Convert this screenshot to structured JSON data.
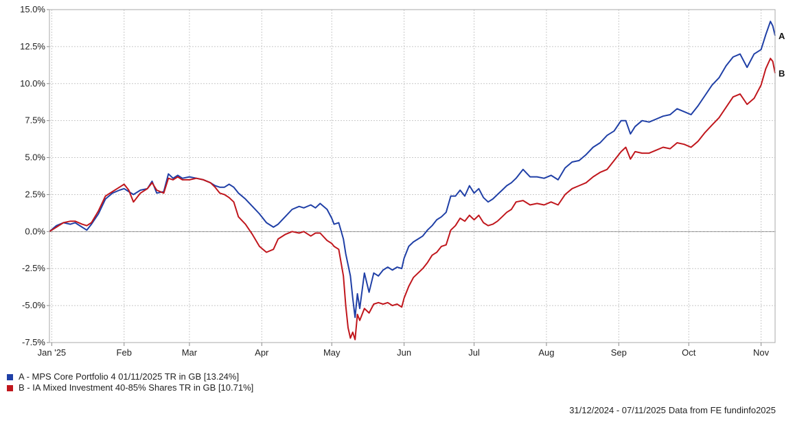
{
  "chart_data": {
    "type": "line",
    "ylim": [
      -7.5,
      15
    ],
    "y_ticks": [
      -7.5,
      -5,
      -2.5,
      0,
      2.5,
      5,
      7.5,
      10,
      12.5,
      15
    ],
    "y_tick_labels": [
      "-7.5%",
      "-5.0%",
      "-2.5%",
      "0.0%",
      "2.5%",
      "5.0%",
      "7.5%",
      "10.0%",
      "12.5%",
      "15.0%"
    ],
    "x_range": [
      "2024-12-31",
      "2025-11-07"
    ],
    "x_ticks": [
      {
        "date": "2025-01-01",
        "label": "Jan '25"
      },
      {
        "date": "2025-02-01",
        "label": "Feb"
      },
      {
        "date": "2025-03-01",
        "label": "Mar"
      },
      {
        "date": "2025-04-01",
        "label": "Apr"
      },
      {
        "date": "2025-05-01",
        "label": "May"
      },
      {
        "date": "2025-06-01",
        "label": "Jun"
      },
      {
        "date": "2025-07-01",
        "label": "Jul"
      },
      {
        "date": "2025-08-01",
        "label": "Aug"
      },
      {
        "date": "2025-09-01",
        "label": "Sep"
      },
      {
        "date": "2025-10-01",
        "label": "Oct"
      },
      {
        "date": "2025-11-01",
        "label": "Nov"
      }
    ],
    "grid": true,
    "series": [
      {
        "name": "A - MPS Core Portfolio 4 01/11/2025 TR in GB [13.24%]",
        "end_label": "A",
        "color": "#1f3fa6",
        "points": [
          [
            "2024-12-31",
            0
          ],
          [
            "2025-01-03",
            0.4
          ],
          [
            "2025-01-06",
            0.6
          ],
          [
            "2025-01-09",
            0.5
          ],
          [
            "2025-01-11",
            0.6
          ],
          [
            "2025-01-14",
            0.3
          ],
          [
            "2025-01-16",
            0.1
          ],
          [
            "2025-01-18",
            0.5
          ],
          [
            "2025-01-21",
            1.2
          ],
          [
            "2025-01-24",
            2.2
          ],
          [
            "2025-01-27",
            2.6
          ],
          [
            "2025-01-30",
            2.8
          ],
          [
            "2025-02-01",
            2.9
          ],
          [
            "2025-02-03",
            2.7
          ],
          [
            "2025-02-05",
            2.5
          ],
          [
            "2025-02-08",
            2.8
          ],
          [
            "2025-02-11",
            2.9
          ],
          [
            "2025-02-13",
            3.4
          ],
          [
            "2025-02-15",
            2.6
          ],
          [
            "2025-02-18",
            2.7
          ],
          [
            "2025-02-20",
            3.9
          ],
          [
            "2025-02-22",
            3.6
          ],
          [
            "2025-02-24",
            3.8
          ],
          [
            "2025-02-26",
            3.6
          ],
          [
            "2025-03-01",
            3.7
          ],
          [
            "2025-03-04",
            3.6
          ],
          [
            "2025-03-07",
            3.5
          ],
          [
            "2025-03-10",
            3.3
          ],
          [
            "2025-03-12",
            3.1
          ],
          [
            "2025-03-14",
            3.0
          ],
          [
            "2025-03-16",
            3.0
          ],
          [
            "2025-03-18",
            3.2
          ],
          [
            "2025-03-20",
            3.0
          ],
          [
            "2025-03-22",
            2.6
          ],
          [
            "2025-03-25",
            2.2
          ],
          [
            "2025-03-28",
            1.7
          ],
          [
            "2025-03-31",
            1.2
          ],
          [
            "2025-04-03",
            0.6
          ],
          [
            "2025-04-06",
            0.3
          ],
          [
            "2025-04-08",
            0.5
          ],
          [
            "2025-04-11",
            1.0
          ],
          [
            "2025-04-14",
            1.5
          ],
          [
            "2025-04-17",
            1.7
          ],
          [
            "2025-04-19",
            1.6
          ],
          [
            "2025-04-22",
            1.8
          ],
          [
            "2025-04-24",
            1.6
          ],
          [
            "2025-04-26",
            1.9
          ],
          [
            "2025-04-29",
            1.5
          ],
          [
            "2025-05-01",
            0.9
          ],
          [
            "2025-05-02",
            0.5
          ],
          [
            "2025-05-04",
            0.6
          ],
          [
            "2025-05-06",
            -0.5
          ],
          [
            "2025-05-07",
            -1.5
          ],
          [
            "2025-05-09",
            -3.0
          ],
          [
            "2025-05-10",
            -4.5
          ],
          [
            "2025-05-11",
            -5.8
          ],
          [
            "2025-05-12",
            -4.2
          ],
          [
            "2025-05-13",
            -5.2
          ],
          [
            "2025-05-15",
            -2.8
          ],
          [
            "2025-05-17",
            -4.1
          ],
          [
            "2025-05-19",
            -2.8
          ],
          [
            "2025-05-21",
            -3.0
          ],
          [
            "2025-05-23",
            -2.6
          ],
          [
            "2025-05-25",
            -2.4
          ],
          [
            "2025-05-27",
            -2.6
          ],
          [
            "2025-05-29",
            -2.4
          ],
          [
            "2025-05-31",
            -2.5
          ],
          [
            "2025-06-01",
            -1.8
          ],
          [
            "2025-06-03",
            -1.0
          ],
          [
            "2025-06-05",
            -0.7
          ],
          [
            "2025-06-07",
            -0.5
          ],
          [
            "2025-06-09",
            -0.3
          ],
          [
            "2025-06-11",
            0.1
          ],
          [
            "2025-06-13",
            0.4
          ],
          [
            "2025-06-15",
            0.8
          ],
          [
            "2025-06-17",
            1.0
          ],
          [
            "2025-06-19",
            1.3
          ],
          [
            "2025-06-21",
            2.4
          ],
          [
            "2025-06-23",
            2.4
          ],
          [
            "2025-06-25",
            2.8
          ],
          [
            "2025-06-27",
            2.4
          ],
          [
            "2025-06-29",
            3.1
          ],
          [
            "2025-07-01",
            2.6
          ],
          [
            "2025-07-03",
            2.9
          ],
          [
            "2025-07-05",
            2.3
          ],
          [
            "2025-07-07",
            2.0
          ],
          [
            "2025-07-09",
            2.2
          ],
          [
            "2025-07-11",
            2.5
          ],
          [
            "2025-07-13",
            2.8
          ],
          [
            "2025-07-15",
            3.1
          ],
          [
            "2025-07-17",
            3.3
          ],
          [
            "2025-07-19",
            3.6
          ],
          [
            "2025-07-22",
            4.2
          ],
          [
            "2025-07-25",
            3.7
          ],
          [
            "2025-07-28",
            3.7
          ],
          [
            "2025-07-31",
            3.6
          ],
          [
            "2025-08-03",
            3.8
          ],
          [
            "2025-08-06",
            3.5
          ],
          [
            "2025-08-09",
            4.3
          ],
          [
            "2025-08-12",
            4.7
          ],
          [
            "2025-08-15",
            4.8
          ],
          [
            "2025-08-18",
            5.2
          ],
          [
            "2025-08-21",
            5.7
          ],
          [
            "2025-08-24",
            6.0
          ],
          [
            "2025-08-27",
            6.5
          ],
          [
            "2025-08-30",
            6.8
          ],
          [
            "2025-09-02",
            7.5
          ],
          [
            "2025-09-04",
            7.5
          ],
          [
            "2025-09-06",
            6.6
          ],
          [
            "2025-09-08",
            7.1
          ],
          [
            "2025-09-11",
            7.5
          ],
          [
            "2025-09-14",
            7.4
          ],
          [
            "2025-09-17",
            7.6
          ],
          [
            "2025-09-20",
            7.8
          ],
          [
            "2025-09-23",
            7.9
          ],
          [
            "2025-09-26",
            8.3
          ],
          [
            "2025-09-29",
            8.1
          ],
          [
            "2025-10-02",
            7.9
          ],
          [
            "2025-10-05",
            8.5
          ],
          [
            "2025-10-08",
            9.2
          ],
          [
            "2025-10-11",
            9.9
          ],
          [
            "2025-10-14",
            10.4
          ],
          [
            "2025-10-17",
            11.2
          ],
          [
            "2025-10-20",
            11.8
          ],
          [
            "2025-10-23",
            12.0
          ],
          [
            "2025-10-26",
            11.1
          ],
          [
            "2025-10-29",
            12.0
          ],
          [
            "2025-11-01",
            12.3
          ],
          [
            "2025-11-03",
            13.3
          ],
          [
            "2025-11-05",
            14.2
          ],
          [
            "2025-11-06",
            13.9
          ],
          [
            "2025-11-07",
            13.24
          ]
        ]
      },
      {
        "name": "B - IA Mixed Investment 40-85% Shares TR in GB [10.71%]",
        "end_label": "B",
        "color": "#c0161c",
        "points": [
          [
            "2024-12-31",
            0
          ],
          [
            "2025-01-03",
            0.3
          ],
          [
            "2025-01-06",
            0.6
          ],
          [
            "2025-01-09",
            0.7
          ],
          [
            "2025-01-11",
            0.7
          ],
          [
            "2025-01-14",
            0.5
          ],
          [
            "2025-01-16",
            0.4
          ],
          [
            "2025-01-18",
            0.6
          ],
          [
            "2025-01-21",
            1.4
          ],
          [
            "2025-01-24",
            2.4
          ],
          [
            "2025-01-27",
            2.7
          ],
          [
            "2025-01-30",
            3.0
          ],
          [
            "2025-02-01",
            3.2
          ],
          [
            "2025-02-03",
            2.8
          ],
          [
            "2025-02-05",
            2.0
          ],
          [
            "2025-02-08",
            2.6
          ],
          [
            "2025-02-11",
            2.9
          ],
          [
            "2025-02-13",
            3.3
          ],
          [
            "2025-02-15",
            2.8
          ],
          [
            "2025-02-18",
            2.6
          ],
          [
            "2025-02-20",
            3.6
          ],
          [
            "2025-02-22",
            3.5
          ],
          [
            "2025-02-24",
            3.7
          ],
          [
            "2025-02-26",
            3.5
          ],
          [
            "2025-03-01",
            3.5
          ],
          [
            "2025-03-04",
            3.6
          ],
          [
            "2025-03-07",
            3.5
          ],
          [
            "2025-03-10",
            3.3
          ],
          [
            "2025-03-12",
            3.0
          ],
          [
            "2025-03-14",
            2.6
          ],
          [
            "2025-03-16",
            2.5
          ],
          [
            "2025-03-18",
            2.3
          ],
          [
            "2025-03-20",
            2.0
          ],
          [
            "2025-03-22",
            1.0
          ],
          [
            "2025-03-25",
            0.5
          ],
          [
            "2025-03-28",
            -0.2
          ],
          [
            "2025-03-31",
            -1.0
          ],
          [
            "2025-04-03",
            -1.4
          ],
          [
            "2025-04-06",
            -1.2
          ],
          [
            "2025-04-08",
            -0.5
          ],
          [
            "2025-04-11",
            -0.2
          ],
          [
            "2025-04-14",
            0
          ],
          [
            "2025-04-17",
            -0.1
          ],
          [
            "2025-04-19",
            0
          ],
          [
            "2025-04-22",
            -0.3
          ],
          [
            "2025-04-24",
            -0.1
          ],
          [
            "2025-04-26",
            -0.1
          ],
          [
            "2025-04-29",
            -0.6
          ],
          [
            "2025-05-01",
            -0.8
          ],
          [
            "2025-05-02",
            -1.0
          ],
          [
            "2025-05-04",
            -1.2
          ],
          [
            "2025-05-06",
            -3.0
          ],
          [
            "2025-05-07",
            -5.0
          ],
          [
            "2025-05-08",
            -6.5
          ],
          [
            "2025-05-09",
            -7.2
          ],
          [
            "2025-05-10",
            -6.8
          ],
          [
            "2025-05-11",
            -7.3
          ],
          [
            "2025-05-12",
            -5.6
          ],
          [
            "2025-05-13",
            -6.0
          ],
          [
            "2025-05-15",
            -5.2
          ],
          [
            "2025-05-17",
            -5.5
          ],
          [
            "2025-05-19",
            -4.9
          ],
          [
            "2025-05-21",
            -4.8
          ],
          [
            "2025-05-23",
            -4.9
          ],
          [
            "2025-05-25",
            -4.8
          ],
          [
            "2025-05-27",
            -5.0
          ],
          [
            "2025-05-29",
            -4.9
          ],
          [
            "2025-05-31",
            -5.1
          ],
          [
            "2025-06-01",
            -4.5
          ],
          [
            "2025-06-03",
            -3.7
          ],
          [
            "2025-06-05",
            -3.1
          ],
          [
            "2025-06-07",
            -2.8
          ],
          [
            "2025-06-09",
            -2.5
          ],
          [
            "2025-06-11",
            -2.1
          ],
          [
            "2025-06-13",
            -1.6
          ],
          [
            "2025-06-15",
            -1.4
          ],
          [
            "2025-06-17",
            -1.0
          ],
          [
            "2025-06-19",
            -0.9
          ],
          [
            "2025-06-21",
            0.1
          ],
          [
            "2025-06-23",
            0.4
          ],
          [
            "2025-06-25",
            0.9
          ],
          [
            "2025-06-27",
            0.7
          ],
          [
            "2025-06-29",
            1.1
          ],
          [
            "2025-07-01",
            0.8
          ],
          [
            "2025-07-03",
            1.1
          ],
          [
            "2025-07-05",
            0.6
          ],
          [
            "2025-07-07",
            0.4
          ],
          [
            "2025-07-09",
            0.5
          ],
          [
            "2025-07-11",
            0.7
          ],
          [
            "2025-07-13",
            1.0
          ],
          [
            "2025-07-15",
            1.3
          ],
          [
            "2025-07-17",
            1.5
          ],
          [
            "2025-07-19",
            2.0
          ],
          [
            "2025-07-22",
            2.1
          ],
          [
            "2025-07-25",
            1.8
          ],
          [
            "2025-07-28",
            1.9
          ],
          [
            "2025-07-31",
            1.8
          ],
          [
            "2025-08-03",
            2.0
          ],
          [
            "2025-08-06",
            1.8
          ],
          [
            "2025-08-09",
            2.5
          ],
          [
            "2025-08-12",
            2.9
          ],
          [
            "2025-08-15",
            3.1
          ],
          [
            "2025-08-18",
            3.3
          ],
          [
            "2025-08-21",
            3.7
          ],
          [
            "2025-08-24",
            4.0
          ],
          [
            "2025-08-27",
            4.2
          ],
          [
            "2025-08-30",
            4.8
          ],
          [
            "2025-09-02",
            5.4
          ],
          [
            "2025-09-04",
            5.7
          ],
          [
            "2025-09-06",
            4.9
          ],
          [
            "2025-09-08",
            5.4
          ],
          [
            "2025-09-11",
            5.3
          ],
          [
            "2025-09-14",
            5.3
          ],
          [
            "2025-09-17",
            5.5
          ],
          [
            "2025-09-20",
            5.7
          ],
          [
            "2025-09-23",
            5.6
          ],
          [
            "2025-09-26",
            6.0
          ],
          [
            "2025-09-29",
            5.9
          ],
          [
            "2025-10-02",
            5.7
          ],
          [
            "2025-10-05",
            6.1
          ],
          [
            "2025-10-08",
            6.7
          ],
          [
            "2025-10-11",
            7.2
          ],
          [
            "2025-10-14",
            7.7
          ],
          [
            "2025-10-17",
            8.4
          ],
          [
            "2025-10-20",
            9.1
          ],
          [
            "2025-10-23",
            9.3
          ],
          [
            "2025-10-26",
            8.6
          ],
          [
            "2025-10-29",
            9.0
          ],
          [
            "2025-11-01",
            9.9
          ],
          [
            "2025-11-03",
            11.0
          ],
          [
            "2025-11-05",
            11.7
          ],
          [
            "2025-11-06",
            11.5
          ],
          [
            "2025-11-07",
            10.71
          ]
        ]
      }
    ]
  },
  "legend": {
    "a_label": "A - MPS Core Portfolio 4 01/11/2025 TR in GB [13.24%]",
    "b_label": "B - IA Mixed Investment 40-85% Shares TR in GB [10.71%]"
  },
  "footer": {
    "date_range": "31/12/2024 - 07/11/2025",
    "source": "Data from FE fundinfo2025"
  }
}
